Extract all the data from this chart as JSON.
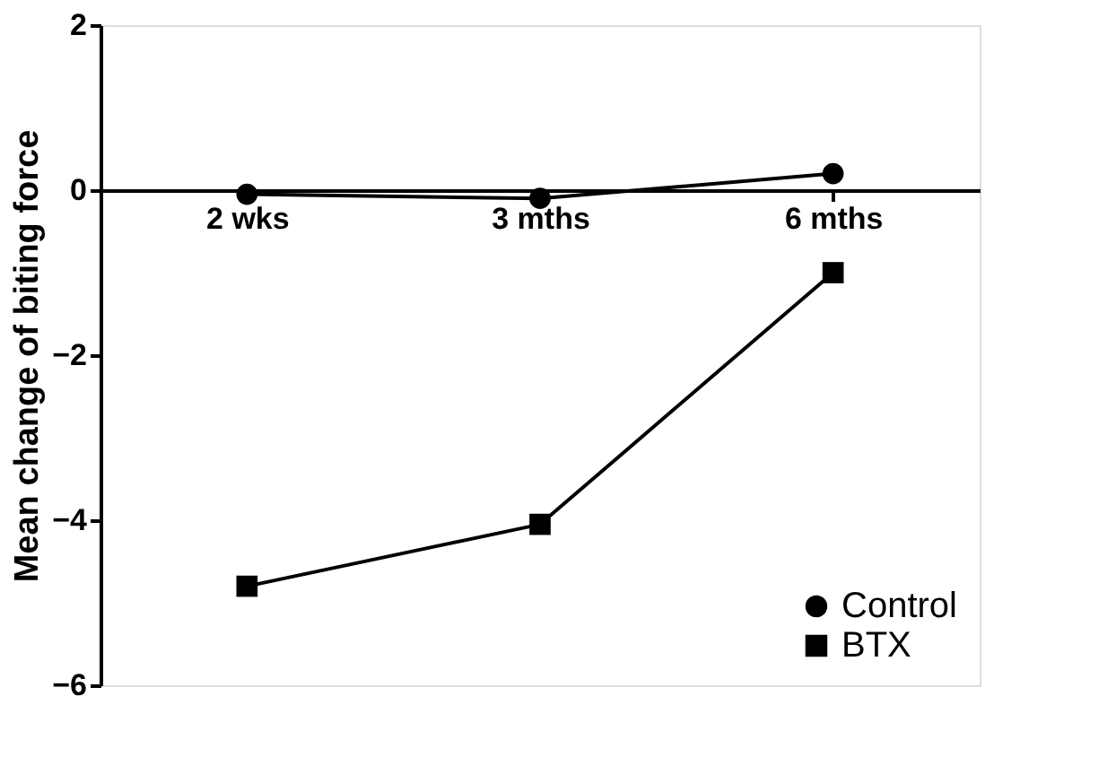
{
  "chart_data": {
    "type": "line",
    "ylabel": "Mean change of biting force",
    "categories": [
      "2 wks",
      "3 mths",
      "6 mths"
    ],
    "series": [
      {
        "name": "Control",
        "color": "#000000",
        "marker": "circle",
        "values": [
          -0.05,
          -0.1,
          0.2
        ]
      },
      {
        "name": "BTX",
        "color": "#000000",
        "marker": "square",
        "values": [
          -4.8,
          -4.05,
          -1.0
        ]
      }
    ],
    "ylim": [
      -6,
      2
    ],
    "yticks": [
      -6,
      -4,
      -2,
      0,
      2
    ],
    "grid": false,
    "legend": "bottom right",
    "line_style": "solid"
  }
}
